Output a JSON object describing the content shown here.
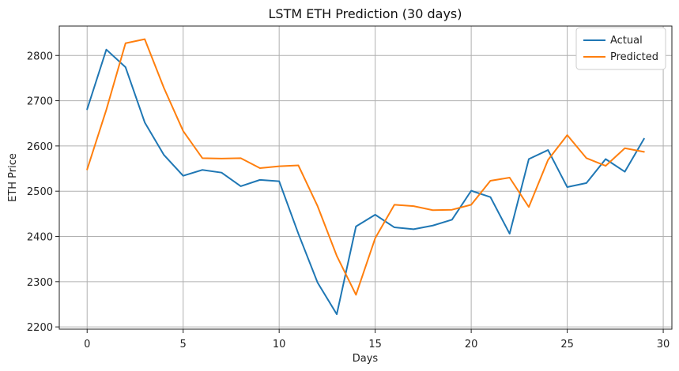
{
  "chart_data": {
    "type": "line",
    "title": "LSTM ETH Prediction (30 days)",
    "xlabel": "Days",
    "ylabel": "ETH Price",
    "xlim": [
      -1.45,
      30.45
    ],
    "ylim": [
      2195,
      2865
    ],
    "xticks": [
      0,
      5,
      10,
      15,
      20,
      25,
      30
    ],
    "yticks": [
      2200,
      2300,
      2400,
      2500,
      2600,
      2700,
      2800
    ],
    "grid": true,
    "legend": "top-right",
    "x": [
      0,
      1,
      2,
      3,
      4,
      5,
      6,
      7,
      8,
      9,
      10,
      11,
      12,
      13,
      14,
      15,
      16,
      17,
      18,
      19,
      20,
      21,
      22,
      23,
      24,
      25,
      26,
      27,
      28,
      29
    ],
    "series": [
      {
        "name": "Actual",
        "color": "#1f77b4",
        "values": [
          2681,
          2813,
          2774,
          2652,
          2580,
          2534,
          2547,
          2541,
          2511,
          2525,
          2522,
          2406,
          2298,
          2228,
          2422,
          2448,
          2420,
          2416,
          2424,
          2437,
          2501,
          2487,
          2406,
          2571,
          2591,
          2509,
          2518,
          2571,
          2543,
          2616
        ]
      },
      {
        "name": "Predicted",
        "color": "#ff7f0e",
        "values": [
          2548,
          2680,
          2827,
          2836,
          2728,
          2633,
          2573,
          2572,
          2573,
          2551,
          2555,
          2557,
          2467,
          2357,
          2271,
          2396,
          2470,
          2467,
          2458,
          2459,
          2470,
          2523,
          2530,
          2465,
          2569,
          2624,
          2573,
          2556,
          2595,
          2587
        ]
      }
    ]
  }
}
